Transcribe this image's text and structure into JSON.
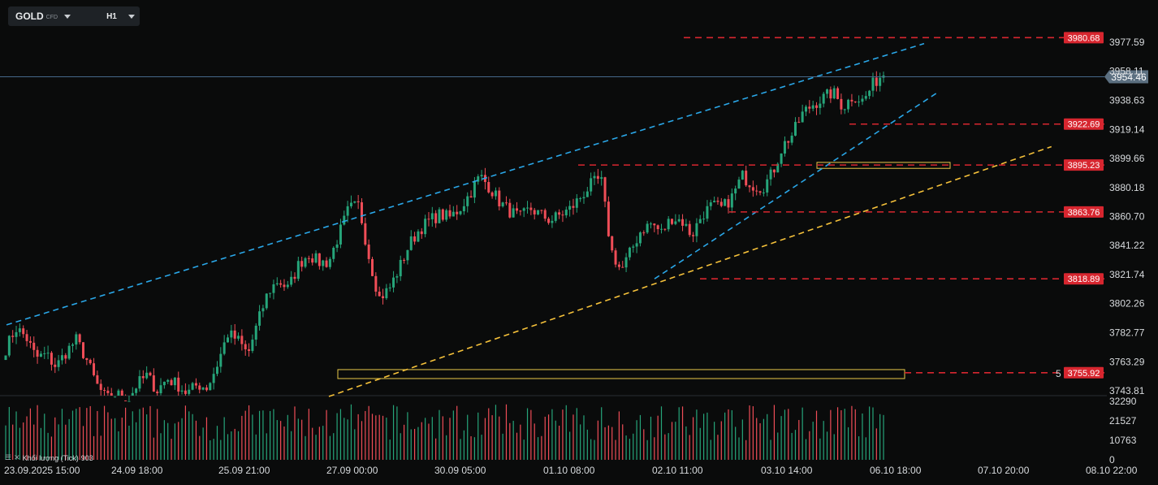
{
  "toolbar": {
    "symbol": "GOLD",
    "symbol_type": "CFD",
    "timeframe": "H1"
  },
  "volume_legend": {
    "label": "Khối lượng (Tick)",
    "value": "903"
  },
  "colors": {
    "background": "#0a0b0b",
    "bull": "#26a57a",
    "bear": "#ef4d57",
    "price_line": "#2aa7e8",
    "support_line": "#f5c13a",
    "level_line": "#d7262f",
    "zone_border": "#e8c84a",
    "current_price_tag": "#5b6f80"
  },
  "chart_data": [
    {
      "type": "candlestick",
      "symbol": "GOLD",
      "timeframe": "H1",
      "y_range": [
        3740,
        3992
      ],
      "y_ticks": [
        "3977.59",
        "3958.11",
        "3938.63",
        "3919.14",
        "3899.66",
        "3880.18",
        "3860.70",
        "3841.22",
        "3821.74",
        "3802.26",
        "3782.77",
        "3763.29",
        "3743.81"
      ],
      "x_ticks": [
        "23.09.2025  15:00",
        "24.09  18:00",
        "25.09  21:00",
        "27.09  00:00",
        "30.09  05:00",
        "01.10  08:00",
        "02.10  11:00",
        "03.10  14:00",
        "06.10  18:00",
        "07.10  20:00",
        "08.10  22:00"
      ],
      "current_price": "3954.46",
      "price_levels": [
        "3980.68",
        "3922.69",
        "3895.23",
        "3863.76",
        "3818.89",
        "3755.92"
      ],
      "level_marker": "5",
      "trend_lines": [
        {
          "color": "blue",
          "from": [
            "23.09.2025  15:00",
            3788
          ],
          "to": [
            "06.10  18:00",
            3966
          ]
        },
        {
          "color": "blue",
          "from": [
            "02.10  11:00",
            3818.89
          ],
          "to": [
            "06.10  18:00",
            3915
          ]
        },
        {
          "color": "yellow",
          "from": [
            "27.09  00:00",
            3740
          ],
          "to": [
            "06.10  18:00",
            3866
          ]
        }
      ],
      "zones": [
        {
          "price_top": 3758,
          "price_bottom": 3752
        },
        {
          "price_top": 3897,
          "price_bottom": 3893
        }
      ],
      "anchors": [
        {
          "close": 3772
        },
        {
          "close": 3786
        },
        {
          "close": 3780
        },
        {
          "close": 3766
        },
        {
          "close": 3768
        },
        {
          "close": 3760
        },
        {
          "close": 3770
        },
        {
          "close": 3778
        },
        {
          "close": 3765
        },
        {
          "close": 3748
        },
        {
          "close": 3738
        },
        {
          "close": 3742
        },
        {
          "close": 3736
        },
        {
          "close": 3748
        },
        {
          "close": 3754
        },
        {
          "close": 3744
        },
        {
          "close": 3752
        },
        {
          "close": 3748
        },
        {
          "close": 3742
        },
        {
          "close": 3748
        },
        {
          "close": 3746
        },
        {
          "close": 3762
        },
        {
          "close": 3782
        },
        {
          "close": 3778
        },
        {
          "close": 3768
        },
        {
          "close": 3790
        },
        {
          "close": 3810
        },
        {
          "close": 3818
        },
        {
          "close": 3812
        },
        {
          "close": 3828
        },
        {
          "close": 3836
        },
        {
          "close": 3830
        },
        {
          "close": 3830
        },
        {
          "close": 3848
        },
        {
          "close": 3866
        },
        {
          "close": 3868
        },
        {
          "close": 3834
        },
        {
          "close": 3806
        },
        {
          "close": 3812
        },
        {
          "close": 3826
        },
        {
          "close": 3842
        },
        {
          "close": 3852
        },
        {
          "close": 3858
        },
        {
          "close": 3862
        },
        {
          "close": 3860
        },
        {
          "close": 3866
        },
        {
          "close": 3876
        },
        {
          "close": 3888
        },
        {
          "close": 3880
        },
        {
          "close": 3870
        },
        {
          "close": 3864
        },
        {
          "close": 3860
        },
        {
          "close": 3866
        },
        {
          "close": 3862
        },
        {
          "close": 3858
        },
        {
          "close": 3862
        },
        {
          "close": 3866
        },
        {
          "close": 3874
        },
        {
          "close": 3882
        },
        {
          "close": 3886
        },
        {
          "close": 3838
        },
        {
          "close": 3824
        },
        {
          "close": 3838
        },
        {
          "close": 3852
        },
        {
          "close": 3856
        },
        {
          "close": 3850
        },
        {
          "close": 3860
        },
        {
          "close": 3858
        },
        {
          "close": 3848
        },
        {
          "close": 3862
        },
        {
          "close": 3868
        },
        {
          "close": 3866
        },
        {
          "close": 3874
        },
        {
          "close": 3888
        },
        {
          "close": 3882
        },
        {
          "close": 3880
        },
        {
          "close": 3890
        },
        {
          "close": 3908
        },
        {
          "close": 3916
        },
        {
          "close": 3930
        },
        {
          "close": 3936
        },
        {
          "close": 3940
        },
        {
          "close": 3944
        },
        {
          "close": 3934
        },
        {
          "close": 3942
        },
        {
          "close": 3938
        },
        {
          "close": 3950
        },
        {
          "close": 3957
        }
      ]
    },
    {
      "type": "bar",
      "title": "Khối lượng (Tick)",
      "y_ticks": [
        "32290",
        "21527",
        "10763",
        "0"
      ],
      "y_range": [
        0,
        32290
      ],
      "last_value": 903
    }
  ]
}
